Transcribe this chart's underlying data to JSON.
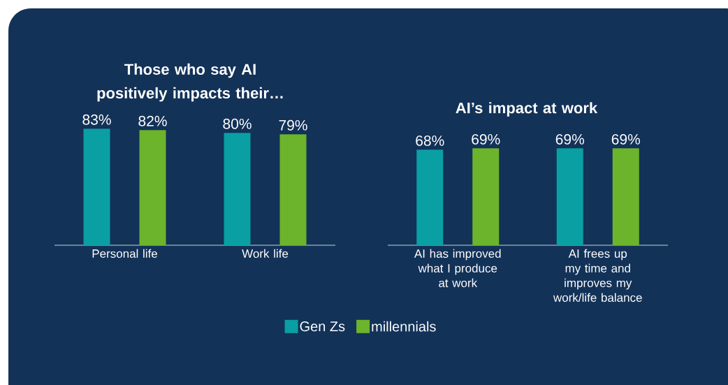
{
  "chart_data": [
    {
      "type": "bar",
      "title": "Those who say AI positively impacts their…",
      "categories": [
        "Personal life",
        "Work life"
      ],
      "legend": "bottom",
      "series": [
        {
          "name": "Gen Zs",
          "color": "#0a9fa3",
          "values": [
            83,
            80
          ],
          "value_labels": [
            "83%",
            "80%"
          ]
        },
        {
          "name": "millennials",
          "color": "#6cb42c",
          "values": [
            82,
            79
          ],
          "value_labels": [
            "82%",
            "79%"
          ]
        }
      ]
    },
    {
      "type": "bar",
      "title": "AI’s impact at work",
      "categories": [
        "AI has improved what I produce at work",
        "AI frees up my time and improves my work/life balance"
      ],
      "series": [
        {
          "color": "#0a9fa3",
          "values": [
            68,
            69
          ],
          "value_labels": [
            "68%",
            "69%"
          ]
        },
        {
          "color": "#6cb42c",
          "values": [
            69,
            69
          ],
          "value_labels": [
            "69%",
            "69%"
          ]
        }
      ]
    }
  ]
}
